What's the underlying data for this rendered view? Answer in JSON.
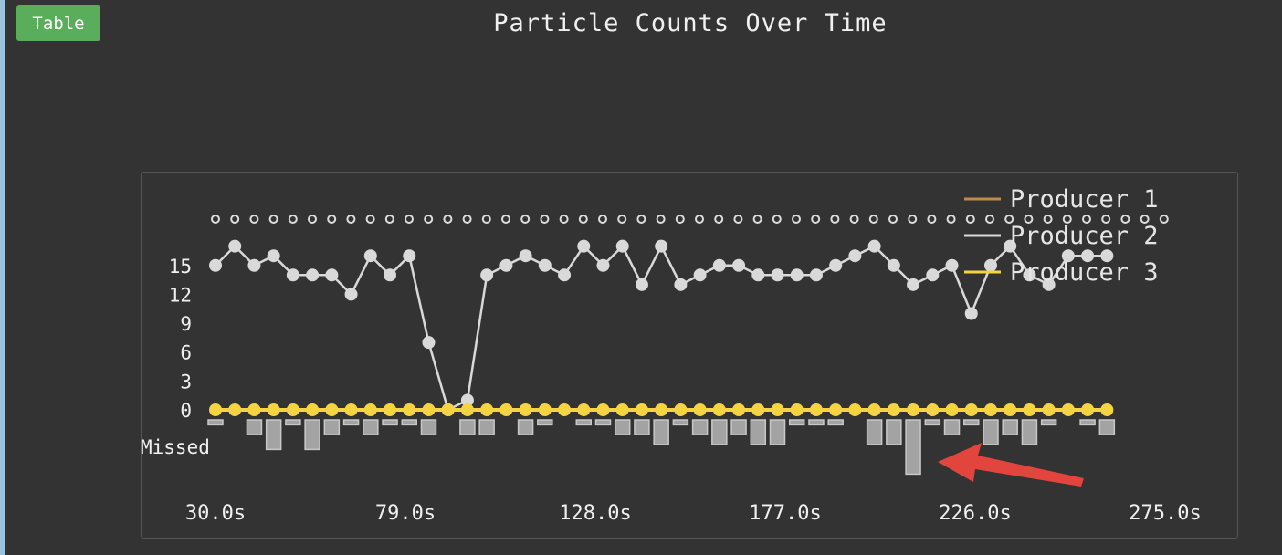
{
  "toolbar": {
    "table_label": "Table"
  },
  "chart_data": {
    "type": "line",
    "title": "Particle Counts Over Time",
    "xlabel": "",
    "ylabel": "",
    "x_tick_labels": [
      "30.0s",
      "79.0s",
      "128.0s",
      "177.0s",
      "226.0s",
      "275.0s"
    ],
    "xlim": [
      30,
      275
    ],
    "y_ticks": [
      0,
      3,
      6,
      9,
      12,
      15
    ],
    "ylim": [
      0,
      18
    ],
    "missed_label": "Missed",
    "legend_position": "top-right",
    "legend": [
      {
        "name": "Producer 1",
        "color": "#c08a4a"
      },
      {
        "name": "Producer 2",
        "color": "#d9d9d9"
      },
      {
        "name": "Producer 3",
        "color": "#f5d442"
      }
    ],
    "x": [
      30,
      35,
      40,
      45,
      50,
      55,
      60,
      65,
      70,
      75,
      80,
      85,
      90,
      95,
      100,
      105,
      110,
      115,
      120,
      125,
      130,
      135,
      140,
      145,
      150,
      155,
      160,
      165,
      170,
      175,
      180,
      185,
      190,
      195,
      200,
      205,
      210,
      215,
      220,
      225,
      230,
      235,
      240,
      245,
      250,
      255,
      260,
      265
    ],
    "series": [
      {
        "name": "Producer 2",
        "color": "#d9d9d9",
        "values": [
          15,
          17,
          15,
          16,
          14,
          14,
          14,
          12,
          16,
          14,
          16,
          7,
          0,
          1,
          14,
          15,
          16,
          15,
          14,
          17,
          15,
          17,
          13,
          17,
          13,
          14,
          15,
          15,
          14,
          14,
          14,
          14,
          15,
          16,
          17,
          15,
          13,
          14,
          15,
          10,
          15,
          17,
          14,
          13,
          16,
          16,
          16,
          null
        ]
      },
      {
        "name": "Producer 3",
        "color": "#f5d442",
        "values": [
          0,
          0,
          0,
          0,
          0,
          0,
          0,
          0,
          0,
          0,
          0,
          0,
          0,
          0,
          0,
          0,
          0,
          0,
          0,
          0,
          0,
          0,
          0,
          0,
          0,
          0,
          0,
          0,
          0,
          0,
          0,
          0,
          0,
          0,
          0,
          0,
          0,
          0,
          0,
          0,
          0,
          0,
          0,
          0,
          0,
          0,
          0,
          null
        ]
      }
    ],
    "missed": [
      1,
      0,
      3,
      6,
      1,
      6,
      3,
      1,
      3,
      1,
      1,
      3,
      0,
      3,
      3,
      0,
      3,
      1,
      0,
      1,
      1,
      3,
      3,
      5,
      1,
      3,
      5,
      3,
      5,
      5,
      1,
      1,
      1,
      0,
      5,
      5,
      11,
      1,
      3,
      1,
      5,
      3,
      5,
      1,
      0,
      1,
      3,
      0
    ],
    "top_marker_count": 50
  }
}
